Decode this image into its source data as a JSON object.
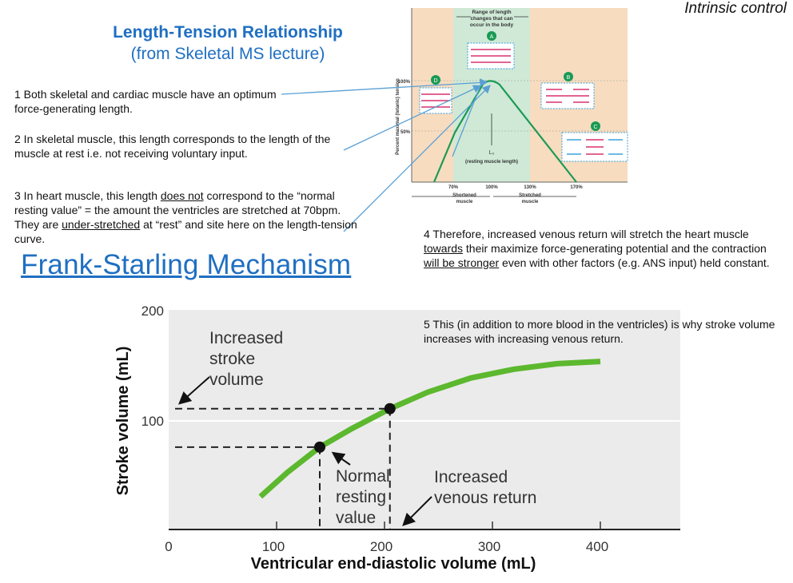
{
  "header": {
    "corner_label": "Intrinsic control"
  },
  "length_tension": {
    "title_line1": "Length-Tension Relationship",
    "title_line2": "(from Skeletal MS lecture)",
    "points": {
      "p1": "1 Both skeletal and cardiac muscle have an optimum force-generating length.",
      "p2": "2 In skeletal muscle, this length corresponds to the length of the muscle at rest i.e. not receiving voluntary input.",
      "p3_a": "3 In heart muscle, this length ",
      "p3_u1": "does not",
      "p3_b": " correspond to the “normal resting value” = the amount the ventricles are stretched at 70bpm. They are ",
      "p3_u2": "under-stretched",
      "p3_c": " at “rest” and site here on the length-tension curve.",
      "p4_a": "4 Therefore, increased venous return will stretch the heart muscle ",
      "p4_u1": "towards",
      "p4_b": " their maximize force-generating potential and the contraction ",
      "p4_u2": "will be stronger",
      "p4_c": " even with other factors (e.g. ANS input) held constant.",
      "p5": "5 This (in addition to more blood in the ventricles) is why stroke volume increases with increasing venous return."
    }
  },
  "frank_starling": {
    "title": "Frank-Starling Mechanism"
  },
  "inset": {
    "range_label_1": "Range of length",
    "range_label_2": "changes that can",
    "range_label_3": "occur in the body",
    "marker_a": "A",
    "marker_b": "B",
    "marker_c": "C",
    "marker_d": "D",
    "y_label": "Percent maximal (tetanic) tension",
    "y_tick_100": "100%",
    "y_tick_50": "50%",
    "lo_label": "L₀",
    "resting_label": "(resting muscle length)",
    "x_ticks": [
      "70%",
      "100%",
      "130%",
      "170%"
    ],
    "shortened_1": "Shortened",
    "shortened_2": "muscle",
    "stretched_1": "Stretched",
    "stretched_2": "muscle",
    "colors": {
      "side_bg": "#f7dcc0",
      "mid_bg": "#cfe9d6",
      "curve": "#1a9a55",
      "filament_red": "#d8306e",
      "filament_blue": "#3aa3dc"
    }
  },
  "chart_data": {
    "type": "line",
    "title": "Frank-Starling Mechanism",
    "xlabel": "Ventricular end-diastolic volume (mL)",
    "ylabel": "Stroke volume (mL)",
    "xlim": [
      0,
      470
    ],
    "ylim": [
      0,
      200
    ],
    "x_ticks": [
      0,
      100,
      200,
      300,
      400
    ],
    "y_ticks": [
      100,
      200
    ],
    "series": [
      {
        "name": "Stroke volume",
        "x": [
          85,
          110,
          140,
          170,
          205,
          240,
          280,
          320,
          360,
          400
        ],
        "y": [
          30,
          52,
          75,
          92,
          110,
          125,
          138,
          146,
          151,
          153
        ]
      }
    ],
    "points": [
      {
        "name": "normal",
        "x": 140,
        "y": 75
      },
      {
        "name": "increased",
        "x": 205,
        "y": 110
      }
    ],
    "annotations": {
      "increased_sv_1": "Increased",
      "increased_sv_2": "stroke",
      "increased_sv_3": "volume",
      "normal_1": "Normal",
      "normal_2": "resting",
      "normal_3": "value",
      "increased_vr_1": "Increased",
      "increased_vr_2": "venous return"
    },
    "colors": {
      "curve": "#5cb82e",
      "band": "#ebebeb",
      "axis": "#333333"
    }
  }
}
